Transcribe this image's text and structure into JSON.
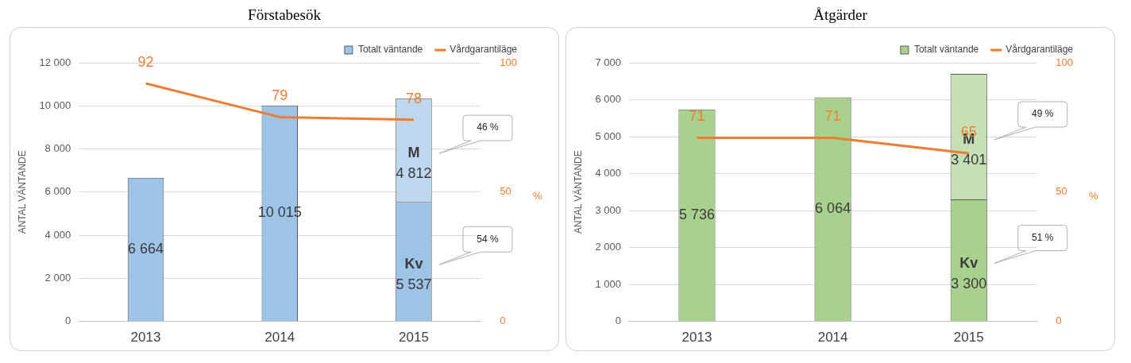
{
  "chart_data": [
    {
      "type": "bar",
      "title": "Förstabesök",
      "categories": [
        "2013",
        "2014",
        "2015"
      ],
      "stacked": true,
      "ylabel": "ANTAL VÄNTANDE",
      "y2label": "%",
      "ylim": [
        0,
        12000
      ],
      "yticks": [
        0,
        {
          "value": 2000,
          "label": "2 000"
        },
        {
          "value": 4000,
          "label": "4 000"
        },
        {
          "value": 6000,
          "label": "6 000"
        },
        {
          "value": 8000,
          "label": "8 000"
        },
        {
          "value": 10000,
          "label": "10 000"
        },
        {
          "value": 12000,
          "label": "12 000"
        }
      ],
      "y2lim": [
        0,
        100
      ],
      "y2ticks": [
        0,
        50,
        100
      ],
      "grid": "y",
      "legend": "top right",
      "marker": "none",
      "line_style": "solid",
      "series": [
        {
          "name": "Totalt väntande",
          "color": "#9dc3e6",
          "values": [
            6664,
            10015,
            null
          ],
          "value_labels": [
            "6 664",
            "10 015",
            null
          ]
        },
        {
          "color": "#9dc3e6",
          "values": [
            null,
            null,
            5537
          ],
          "value_labels": [
            null,
            null,
            "Kv\n5 537"
          ]
        },
        {
          "color": "#bdd7ee",
          "values": [
            null,
            null,
            4812
          ],
          "value_labels": [
            null,
            null,
            "M\n4 812"
          ]
        },
        {
          "name": "Vårdgarantiläge",
          "type": "line",
          "axis": "y2",
          "color": "#ed7d31",
          "values": [
            92,
            79,
            78
          ],
          "value_labels": [
            "92",
            "79",
            "78"
          ]
        }
      ],
      "annotations": [
        "46 %",
        "54 %"
      ]
    },
    {
      "type": "bar",
      "title": "Åtgärder",
      "categories": [
        "2013",
        "2014",
        "2015"
      ],
      "stacked": true,
      "ylabel": "ANTAL VÄNTANDE",
      "y2label": "%",
      "ylim": [
        0,
        7000
      ],
      "yticks": [
        0,
        {
          "value": 1000,
          "label": "1 000"
        },
        {
          "value": 2000,
          "label": "2 000"
        },
        {
          "value": 3000,
          "label": "3 000"
        },
        {
          "value": 4000,
          "label": "4 000"
        },
        {
          "value": 5000,
          "label": "5 000"
        },
        {
          "value": 6000,
          "label": "6 000"
        },
        {
          "value": 7000,
          "label": "7 000"
        }
      ],
      "y2lim": [
        0,
        100
      ],
      "y2ticks": [
        0,
        50,
        100
      ],
      "grid": "y",
      "legend": "top right",
      "marker": "none",
      "line_style": "solid",
      "series": [
        {
          "name": "Totalt väntande",
          "color": "#a9d18e",
          "values": [
            5736,
            6064,
            null
          ],
          "value_labels": [
            "5 736",
            "6 064",
            null
          ]
        },
        {
          "color": "#a9d18e",
          "values": [
            null,
            null,
            3300
          ],
          "value_labels": [
            null,
            null,
            "Kv\n3 300"
          ]
        },
        {
          "color": "#c5e0b4",
          "values": [
            null,
            null,
            3401
          ],
          "value_labels": [
            null,
            null,
            "M\n3 401"
          ]
        },
        {
          "name": "Vårdgarantiläge",
          "type": "line",
          "axis": "y2",
          "color": "#ed7d31",
          "values": [
            71,
            71,
            65
          ],
          "value_labels": [
            "71",
            "71",
            "65"
          ]
        }
      ],
      "annotations": [
        "49 %",
        "51 %"
      ]
    }
  ]
}
